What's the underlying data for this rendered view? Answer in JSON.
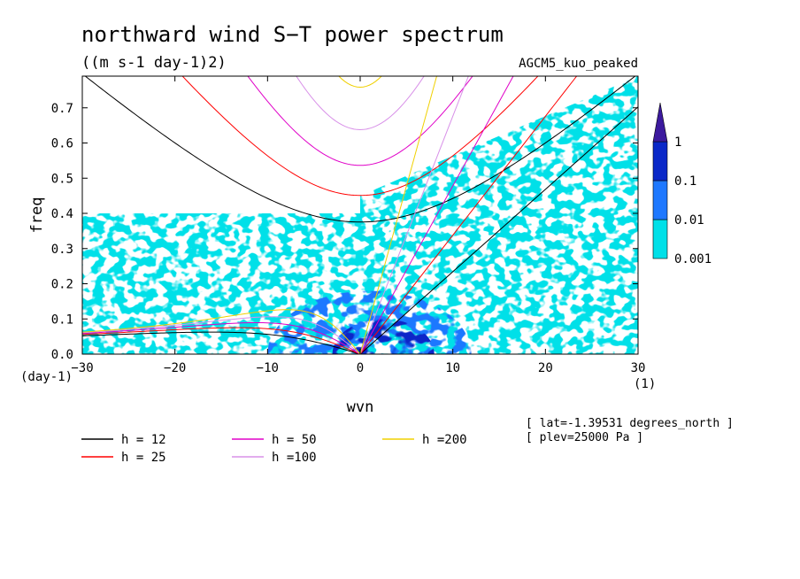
{
  "chart_data": {
    "type": "heatmap",
    "title": "northward wind S−T power spectrum",
    "subtitle": "((m s-1 day-1)2)",
    "model_label": "AGCM5_kuo_peaked",
    "xlabel": "wvn",
    "ylabel": "freq",
    "x_unit": "(1)",
    "y_unit": "(day-1)",
    "xlim": [
      -30,
      30
    ],
    "ylim": [
      0,
      0.79
    ],
    "x_ticks": [
      -30,
      -20,
      -10,
      0,
      10,
      20,
      30
    ],
    "x_tick_labels": [
      "−30",
      "−20",
      "−10",
      "0",
      "10",
      "20",
      "30"
    ],
    "y_ticks": [
      0.0,
      0.1,
      0.2,
      0.3,
      0.4,
      0.5,
      0.6,
      0.7
    ],
    "y_tick_labels": [
      "0.0",
      "0.1",
      "0.2",
      "0.3",
      "0.4",
      "0.5",
      "0.6",
      "0.7"
    ],
    "colorbar": {
      "levels": [
        "0.001",
        "0.01",
        "0.1",
        "1"
      ],
      "colors": [
        "#00e0e8",
        "#1e78ff",
        "#0a28c8",
        "#3c1a9e"
      ]
    },
    "heatmap_regions": [
      {
        "level": 1,
        "desc": "low-frequency band",
        "x": [
          -30,
          30
        ],
        "y": [
          0.0,
          0.4
        ]
      },
      {
        "level": 2,
        "desc": "low-wavenumber maximum",
        "x": [
          -10,
          12
        ],
        "y": [
          0.0,
          0.18
        ]
      },
      {
        "level": 3,
        "desc": "core",
        "x": [
          -3,
          8
        ],
        "y": [
          0.0,
          0.1
        ]
      }
    ],
    "series": [
      {
        "name": "h = 12",
        "color": "#000000",
        "h": 12
      },
      {
        "name": "h = 25",
        "color": "#ff0000",
        "h": 25
      },
      {
        "name": "h = 50",
        "color": "#e000c8",
        "h": 50
      },
      {
        "name": "h =100",
        "color": "#d890e8",
        "h": 100
      },
      {
        "name": "h =200",
        "color": "#f0d000",
        "h": 200
      }
    ],
    "legend_placement": "bottom",
    "annotations": [
      "[ lat=-1.39531 degrees_north ]",
      "[ plev=25000 Pa ]"
    ]
  }
}
